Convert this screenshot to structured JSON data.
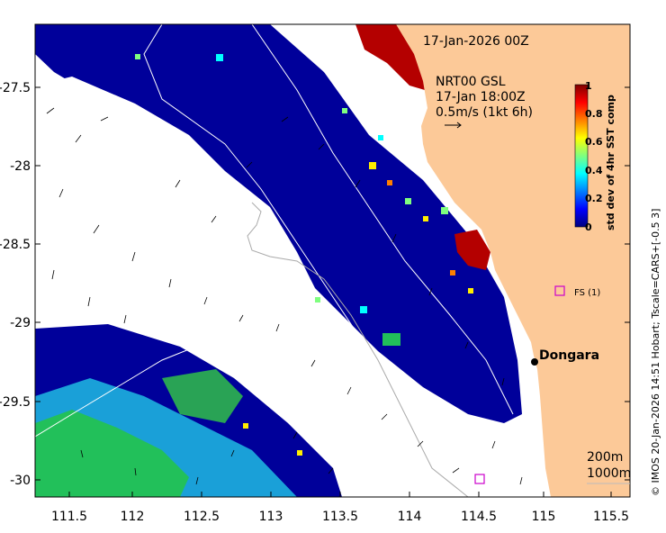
{
  "title": {
    "date": "17-Jan-2026 00Z",
    "current_source": "NRT00 GSL",
    "current_time": "17-Jan 18:00Z",
    "current_scale": "0.5m/s (1kt 6h)"
  },
  "colorbar": {
    "label": "std dev of 4hr SST comp",
    "ticks": [
      "1",
      "0.8",
      "0.6",
      "0.4",
      "0.2",
      "0"
    ],
    "colors": [
      "#00007f",
      "#0000ff",
      "#007fff",
      "#00ffff",
      "#7fff7f",
      "#ffff00",
      "#ff7f00",
      "#ff0000",
      "#7f0000"
    ]
  },
  "axes": {
    "x_ticks": [
      "111.5",
      "112",
      "112.5",
      "113",
      "113.5",
      "114",
      "114.5",
      "115",
      "115.5"
    ],
    "y_ticks": [
      "-27.5",
      "-28",
      "-28.5",
      "-29",
      "-29.5",
      "-30"
    ]
  },
  "places": {
    "dongara": "Dongara",
    "station": "FS (1)"
  },
  "legend": {
    "contour_200": "200m",
    "contour_1000": "1000m"
  },
  "credit": "© IMOS 20-Jan-2026 14:51 Hobart; Tscale=CARS+[-0.5 3]",
  "colors": {
    "land": "#fcc998",
    "low_variance": "#00009a",
    "high_variance": "#b40000",
    "station_marker": "#cc00cc"
  }
}
